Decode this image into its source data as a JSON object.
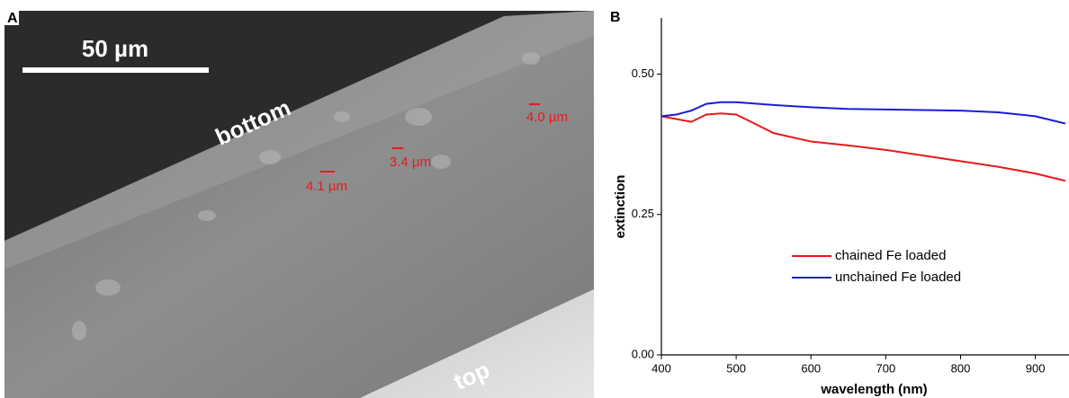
{
  "panel_a": {
    "label": "A",
    "scale_bar": "50 µm",
    "bottom": "bottom",
    "top": "top",
    "measurements": [
      "4.1 µm",
      "3.4 µm",
      "4.0 µm"
    ]
  },
  "chart_data": {
    "type": "line",
    "panel_label": "B",
    "x_label": "wavelength (nm)",
    "y_label": "extinction",
    "x": [
      400,
      420,
      440,
      460,
      480,
      500,
      520,
      550,
      600,
      650,
      700,
      750,
      800,
      850,
      900,
      940
    ],
    "series": [
      {
        "name": "chained Fe loaded",
        "color": "#e8191c",
        "values": [
          0.425,
          0.42,
          0.415,
          0.428,
          0.43,
          0.428,
          0.415,
          0.395,
          0.38,
          0.373,
          0.365,
          0.355,
          0.345,
          0.335,
          0.323,
          0.31
        ]
      },
      {
        "name": "unchained Fe loaded",
        "color": "#1a1ae0",
        "values": [
          0.425,
          0.428,
          0.435,
          0.447,
          0.45,
          0.45,
          0.448,
          0.445,
          0.441,
          0.438,
          0.437,
          0.436,
          0.435,
          0.432,
          0.425,
          0.412
        ]
      }
    ],
    "xlim": [
      400,
      945
    ],
    "ylim": [
      0,
      0.6
    ],
    "xticks": [
      400,
      500,
      600,
      700,
      800,
      900
    ],
    "yticks": [
      {
        "value": 0,
        "label": "0.00"
      },
      {
        "value": 0.25,
        "label": "0.25"
      },
      {
        "value": 0.5,
        "label": "0.50"
      }
    ],
    "legend": "lower right"
  }
}
